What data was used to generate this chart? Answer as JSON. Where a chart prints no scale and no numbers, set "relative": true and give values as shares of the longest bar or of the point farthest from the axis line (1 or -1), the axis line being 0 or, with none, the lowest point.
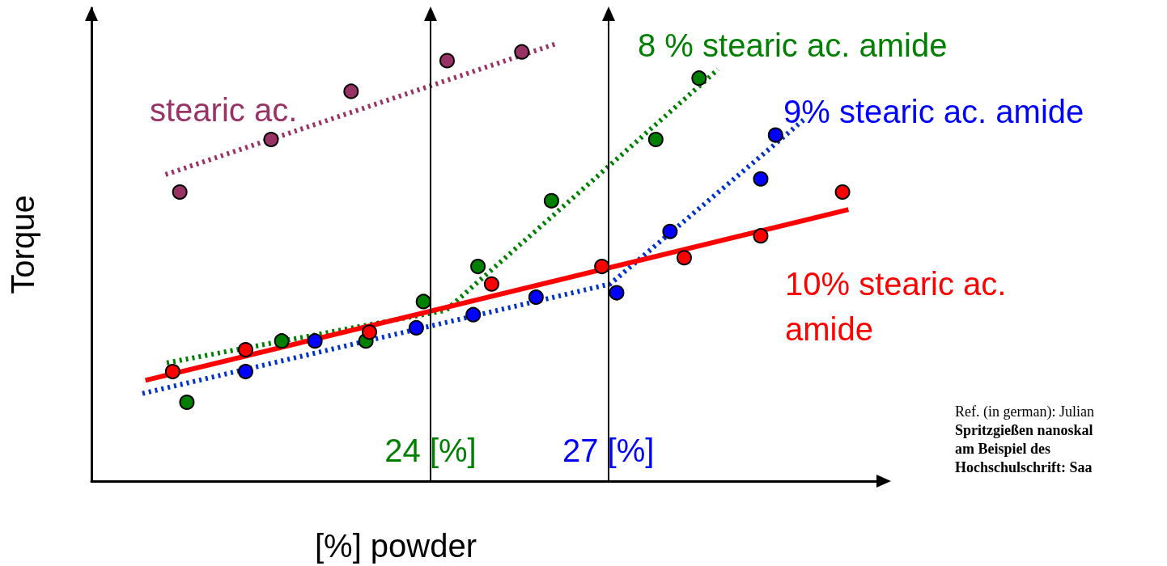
{
  "chart_data": {
    "type": "scatter",
    "xlabel": "[%] powder",
    "ylabel": "Torque",
    "relative": true,
    "tick_labels": "x",
    "grid": false,
    "legend": false,
    "xlim": [
      18.28,
      31.55
    ],
    "xticks": [
      {
        "value": 24,
        "label": "24 [%]"
      },
      {
        "value": 27,
        "label": "27 [%]"
      }
    ],
    "series": [
      {
        "name": "stearic ac.",
        "marker": "circle",
        "color": "#993366",
        "x": [
          19.77,
          21.31,
          22.66,
          24.28,
          25.54
        ],
        "values": [
          0.66,
          0.78,
          0.89,
          0.96,
          0.98
        ]
      },
      {
        "type": "line",
        "color": "#993366",
        "line_style": "dotted",
        "x": [
          19.53,
          26.15
        ],
        "values": [
          0.7,
          1
        ]
      },
      {
        "name": "8 % stearic ac. amide",
        "marker": "circle",
        "color": "#008000",
        "x": [
          19.89,
          21.49,
          22.91,
          23.88,
          24.8,
          26.04,
          27.8,
          28.53
        ],
        "values": [
          0.18,
          0.32,
          0.32,
          0.41,
          0.49,
          0.64,
          0.78,
          0.92
        ]
      },
      {
        "type": "line",
        "color": "#008000",
        "line_style": "dotted",
        "x": [
          19.55,
          24.26,
          28.85
        ],
        "values": [
          0.27,
          0.39,
          0.94
        ]
      },
      {
        "name": "9% stearic ac. amide",
        "marker": "circle",
        "color": "#0000ff",
        "x": [
          20.88,
          22.05,
          23.76,
          24.72,
          25.78,
          27.14,
          28.04,
          29.57,
          29.82
        ],
        "values": [
          0.25,
          0.32,
          0.35,
          0.38,
          0.42,
          0.43,
          0.57,
          0.69,
          0.79
        ]
      },
      {
        "type": "line",
        "color": "#0033cc",
        "line_style": "dotted",
        "x": [
          19.14,
          27.03,
          30.34
        ],
        "values": [
          0.2,
          0.45,
          0.83
        ]
      },
      {
        "name": "10% stearic ac. amide",
        "marker": "circle",
        "color": "#ff0000",
        "x": [
          19.65,
          20.88,
          22.97,
          25.03,
          26.89,
          28.28,
          29.57,
          30.95
        ],
        "values": [
          0.25,
          0.3,
          0.34,
          0.45,
          0.49,
          0.51,
          0.56,
          0.66
        ]
      },
      {
        "type": "line",
        "color": "#ff0000",
        "line_style": "solid",
        "x": [
          19.19,
          31.05
        ],
        "values": [
          0.23,
          0.62
        ]
      }
    ],
    "ref_lines": [
      {
        "axis": "x",
        "value": 24
      },
      {
        "axis": "x",
        "value": 27
      }
    ],
    "annotations": [
      "Ref. (in german): Julian",
      "Spritzgießen nanoskal",
      "am Beispiel des",
      "Hochschulschrift: Saa"
    ]
  }
}
